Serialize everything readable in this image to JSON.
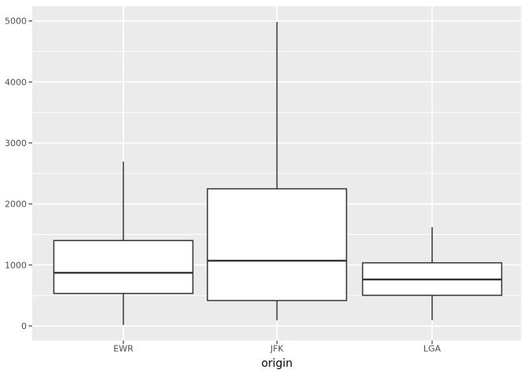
{
  "chart_data": {
    "type": "boxplot",
    "title": "",
    "xlabel": "origin",
    "ylabel": "",
    "categories": [
      "EWR",
      "JFK",
      "LGA"
    ],
    "series": [
      {
        "name": "EWR",
        "whisker_low": 17,
        "q1": 533,
        "median": 872,
        "q3": 1400,
        "whisker_high": 2693
      },
      {
        "name": "JFK",
        "whisker_low": 94,
        "q1": 417,
        "median": 1069,
        "q3": 2248,
        "whisker_high": 4983
      },
      {
        "name": "LGA",
        "whisker_low": 96,
        "q1": 502,
        "median": 762,
        "q3": 1035,
        "whisker_high": 1620
      }
    ],
    "ylim": [
      0,
      5000
    ],
    "yticks": [
      0,
      1000,
      2000,
      3000,
      4000,
      5000
    ],
    "ytick_labels": [
      "0",
      "1000",
      "2000",
      "3000",
      "4000",
      "5000"
    ],
    "minor_tick_step": 500,
    "grid": "on",
    "legend": "none",
    "outliers_shown": false,
    "style": {
      "panel_bg": "#EBEBEB",
      "grid_major": "#FFFFFF",
      "grid_minor": "#FFFFFF",
      "box_fill": "#FFFFFF",
      "box_stroke": "#333333",
      "median_stroke": "#333333",
      "whisker_stroke": "#333333",
      "tick_color": "#333333",
      "axis_text_color": "#4D4D4D",
      "axis_title_color": "#000000",
      "figure_bg": "#FFFFFF"
    }
  }
}
